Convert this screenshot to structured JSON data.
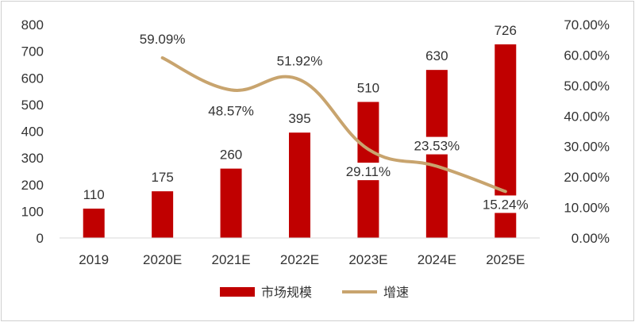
{
  "chart_data": {
    "type": "bar",
    "categories": [
      "2019",
      "2020E",
      "2021E",
      "2022E",
      "2023E",
      "2024E",
      "2025E"
    ],
    "series": [
      {
        "name": "市场规模",
        "type": "bar",
        "axis": "left",
        "values": [
          110,
          175,
          260,
          395,
          510,
          630,
          726
        ],
        "labels": [
          "110",
          "175",
          "260",
          "395",
          "510",
          "630",
          "726"
        ],
        "color": "#c00000"
      },
      {
        "name": "增速",
        "type": "line",
        "axis": "right",
        "values": [
          null,
          59.09,
          48.57,
          51.92,
          29.11,
          23.53,
          15.24
        ],
        "labels": [
          "",
          "59.09%",
          "48.57%",
          "51.92%",
          "29.11%",
          "23.53%",
          "15.24%"
        ],
        "color": "#c8a46e"
      }
    ],
    "y_left": {
      "min": 0,
      "max": 800,
      "ticks": [
        "0",
        "100",
        "200",
        "300",
        "400",
        "500",
        "600",
        "700",
        "800"
      ]
    },
    "y_right": {
      "min": 0,
      "max": 70,
      "ticks": [
        "0.00%",
        "10.00%",
        "20.00%",
        "30.00%",
        "40.00%",
        "50.00%",
        "60.00%",
        "70.00%"
      ]
    },
    "grid": false,
    "legend_position": "bottom",
    "title": "",
    "xlabel": "",
    "ylabel": ""
  }
}
